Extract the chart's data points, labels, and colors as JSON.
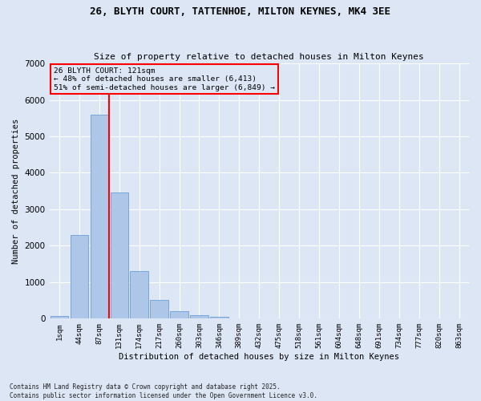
{
  "title_line1": "26, BLYTH COURT, TATTENHOE, MILTON KEYNES, MK4 3EE",
  "title_line2": "Size of property relative to detached houses in Milton Keynes",
  "xlabel": "Distribution of detached houses by size in Milton Keynes",
  "ylabel": "Number of detached properties",
  "bar_labels": [
    "1sqm",
    "44sqm",
    "87sqm",
    "131sqm",
    "174sqm",
    "217sqm",
    "260sqm",
    "303sqm",
    "346sqm",
    "389sqm",
    "432sqm",
    "475sqm",
    "518sqm",
    "561sqm",
    "604sqm",
    "648sqm",
    "691sqm",
    "734sqm",
    "777sqm",
    "820sqm",
    "863sqm"
  ],
  "bar_values": [
    75,
    2300,
    5600,
    3450,
    1310,
    520,
    210,
    95,
    55,
    0,
    0,
    0,
    0,
    0,
    0,
    0,
    0,
    0,
    0,
    0,
    0
  ],
  "bar_color": "#aec6e8",
  "bar_edgecolor": "#6a9fd8",
  "vline_color": "red",
  "vline_x": 2.5,
  "annotation_line1": "26 BLYTH COURT: 121sqm",
  "annotation_line2": "← 48% of detached houses are smaller (6,413)",
  "annotation_line3": "51% of semi-detached houses are larger (6,849) →",
  "annotation_box_color": "red",
  "ylim": [
    0,
    7000
  ],
  "background_color": "#dce6f5",
  "grid_color": "white",
  "footer_line1": "Contains HM Land Registry data © Crown copyright and database right 2025.",
  "footer_line2": "Contains public sector information licensed under the Open Government Licence v3.0."
}
